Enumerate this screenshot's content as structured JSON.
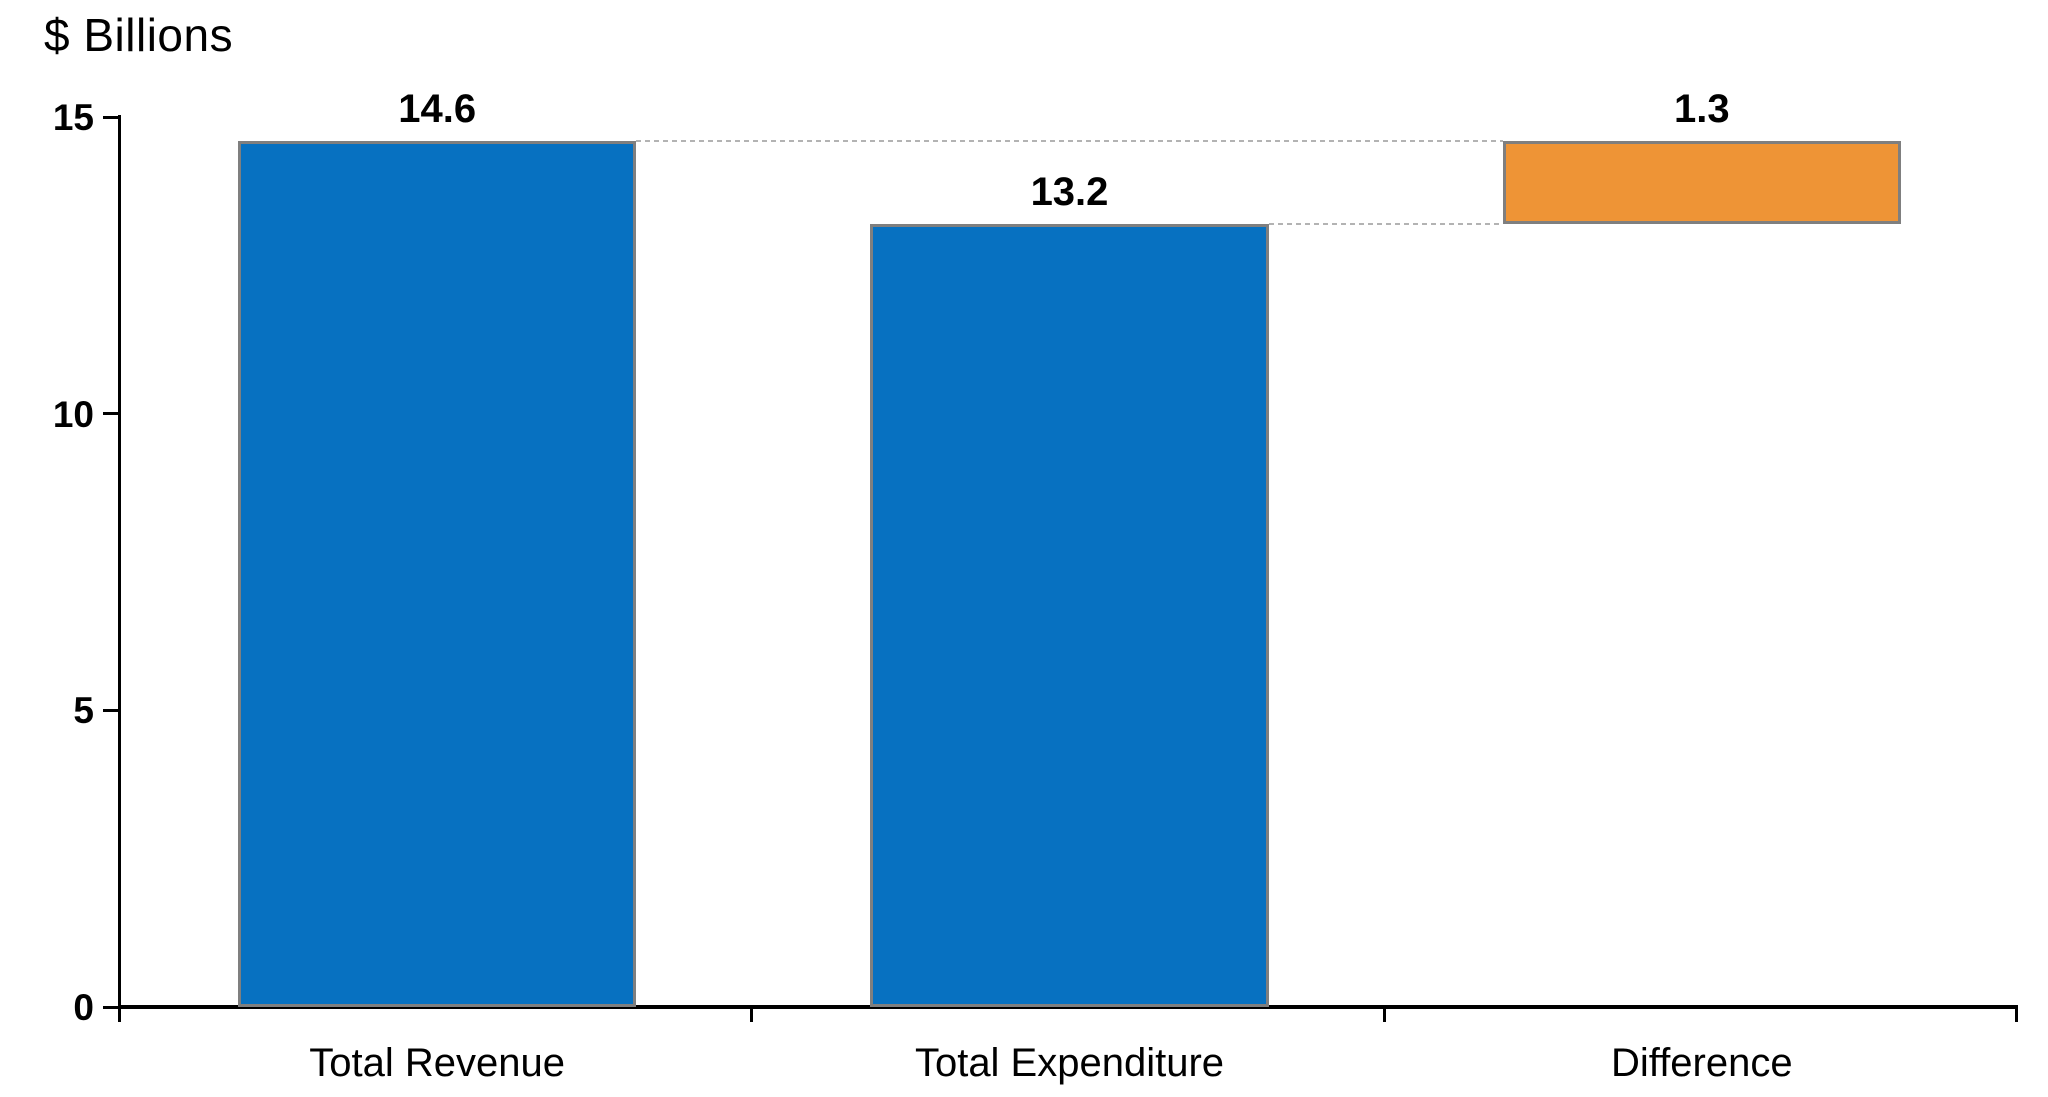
{
  "chart_data": {
    "type": "bar",
    "title": "$ Billions",
    "xlabel": "",
    "ylabel": "$ Billions",
    "categories": [
      "Total Revenue",
      "Total Expenditure",
      "Difference"
    ],
    "values": [
      14.6,
      13.2,
      1.3
    ],
    "bars": [
      {
        "category": "Total Revenue",
        "value": 14.6,
        "base": 0,
        "top": 14.6,
        "data_label": "14.6",
        "color": "#0771c1"
      },
      {
        "category": "Total Expenditure",
        "value": 13.2,
        "base": 0,
        "top": 13.2,
        "data_label": "13.2",
        "color": "#0771c1"
      },
      {
        "category": "Difference",
        "value": 1.3,
        "base": 13.2,
        "top": 14.6,
        "data_label": "1.3",
        "color": "#ee9436"
      }
    ],
    "ylim": [
      0,
      15
    ],
    "yticks": [
      "0",
      "5",
      "10",
      "15"
    ],
    "ytick_values": [
      0,
      5,
      10,
      15
    ],
    "grid": false,
    "legend": "none",
    "connectors": [
      {
        "value": 14.6,
        "from_bar": 0,
        "to_bar": 2
      },
      {
        "value": 13.2,
        "from_bar": 1,
        "to_bar": 2
      }
    ],
    "colors": {
      "bar_blue": "#0771c1",
      "bar_orange": "#ee9436",
      "bar_border": "#7f7f7f",
      "connector": "#b3b3b3",
      "axis": "#000000"
    }
  }
}
